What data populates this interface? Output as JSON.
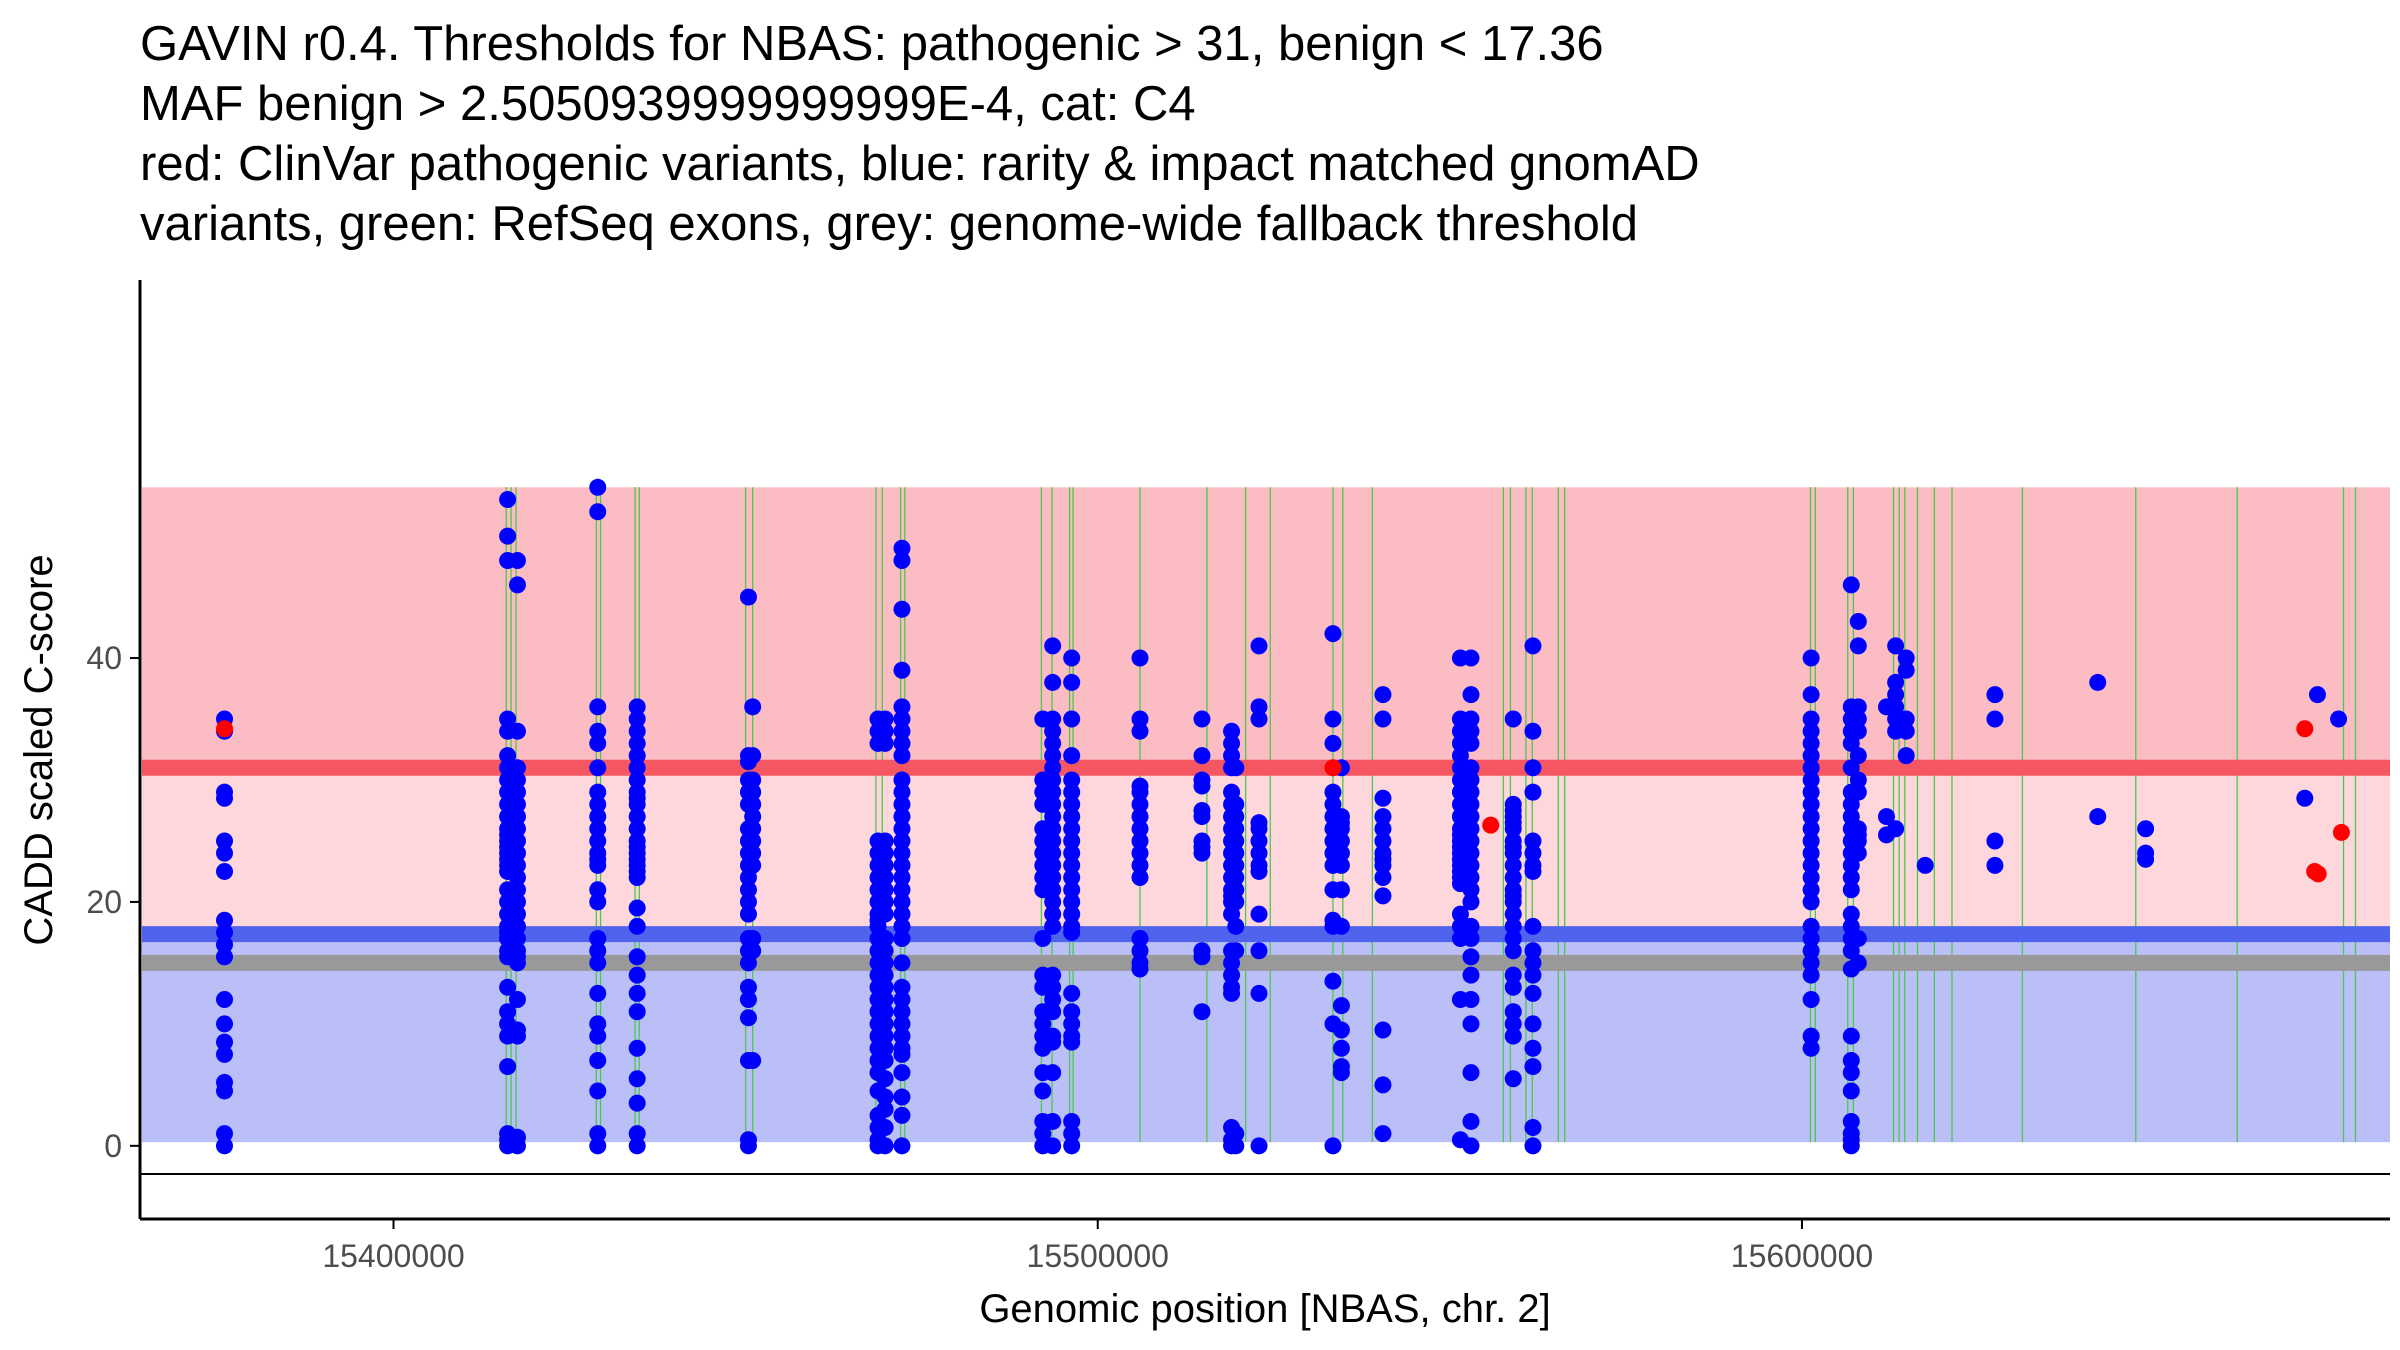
{
  "chart_data": {
    "type": "scatter",
    "title_lines": [
      "GAVIN r0.4. Thresholds for NBAS: pathogenic > 31, benign < 17.36",
      "MAF benign > 2.5050939999999999E-4, cat: C4",
      "red: ClinVar pathogenic variants, blue: rarity & impact matched gnomAD",
      "variants, green: RefSeq exons, grey: genome-wide fallback threshold"
    ],
    "xlabel": "Genomic position [NBAS, chr. 2]",
    "ylabel": "CADD scaled C-score",
    "xlim": [
      15364000,
      15683500
    ],
    "ylim": [
      -6,
      71
    ],
    "x_ticks": [
      15400000,
      15500000,
      15600000
    ],
    "x_tick_labels": [
      "15400000",
      "15500000",
      "15600000"
    ],
    "y_ticks": [
      0,
      20,
      40
    ],
    "y_tick_labels": [
      "0",
      "20",
      "40"
    ],
    "thresholds": {
      "pathogenic": 31,
      "benign": 17.36,
      "fallback": 15,
      "region_top": 54,
      "region_bottom": 0.3
    },
    "colors": {
      "pathogenic_region": "#fcbcc3",
      "middle_region": "#fdd7dc",
      "benign_region": "#bbbff8",
      "pathogenic_line": "#f45762",
      "benign_line": "#4f63ec",
      "fallback_line": "#999999",
      "exon_line": "#4cc84c",
      "gnomad_point": "#0000ff",
      "clinvar_point": "#ff0000"
    },
    "exons": [
      15416000,
      15416700,
      15417400,
      15428800,
      15429400,
      15434300,
      15434900,
      15450000,
      15451000,
      15468500,
      15469400,
      15472000,
      15472600,
      15492000,
      15493500,
      15496000,
      15496500,
      15506000,
      15515500,
      15521000,
      15524500,
      15533400,
      15534800,
      15539000,
      15557600,
      15558600,
      15560800,
      15561700,
      15565400,
      15566300,
      15601200,
      15601900,
      15606500,
      15607300,
      15613000,
      15613800,
      15614600,
      15616400,
      15618800,
      15621300,
      15631300,
      15647400,
      15661800,
      15676900,
      15678600
    ],
    "gnomad_columns": [
      {
        "x": 15376000,
        "y": [
          35,
          34,
          29,
          28.5,
          25,
          24,
          22.5,
          18.5,
          17.5,
          16.5,
          15.5,
          12,
          10,
          8.5,
          7.5,
          5.2,
          4.5,
          1,
          0
        ]
      },
      {
        "x": 15416200,
        "y": [
          53,
          50,
          48,
          35,
          34,
          32,
          31,
          30,
          29,
          28,
          27,
          26,
          25.5,
          25,
          24.5,
          24,
          23.5,
          23,
          22.5,
          21,
          20,
          19,
          18,
          17.5,
          17,
          16,
          15.5,
          13,
          11,
          10,
          9,
          6.5,
          1,
          0.5,
          0
        ]
      },
      {
        "x": 15417600,
        "y": [
          48,
          46,
          34,
          31,
          30,
          29,
          28,
          27,
          26,
          25,
          24,
          23,
          22,
          21,
          20,
          19,
          18,
          17,
          16,
          15.5,
          15,
          12,
          9.5,
          9,
          0.7,
          0
        ]
      },
      {
        "x": 15429000,
        "y": [
          54,
          52,
          36,
          34,
          33,
          31,
          29,
          28,
          27,
          26,
          25,
          24,
          23.5,
          23,
          21,
          20,
          17,
          16,
          15,
          12.5,
          10,
          9,
          7,
          4.5,
          1,
          0
        ]
      },
      {
        "x": 15434600,
        "y": [
          36,
          35,
          34,
          33,
          32,
          31,
          30,
          29,
          28.5,
          28,
          27,
          26,
          25,
          24.5,
          24,
          23.5,
          23,
          22.5,
          22,
          19.5,
          18,
          15.5,
          14,
          12.5,
          11,
          8,
          5.5,
          3.5,
          1,
          0
        ]
      },
      {
        "x": 15450400,
        "y": [
          45,
          32,
          31.5,
          30,
          29,
          28,
          26,
          25,
          24,
          23,
          22,
          21,
          20,
          19,
          17,
          16,
          15,
          13,
          12,
          10.5,
          7,
          0.5,
          0
        ]
      },
      {
        "x": 15451000,
        "y": [
          36,
          32,
          30,
          29,
          28,
          27,
          26,
          25,
          24,
          23,
          17,
          16,
          7
        ]
      },
      {
        "x": 15468800,
        "y": [
          35,
          34,
          33,
          25,
          24,
          23,
          22,
          21,
          20,
          19,
          18.5,
          18,
          17,
          16,
          15,
          14,
          13,
          12,
          11,
          10,
          9,
          8,
          7,
          6,
          4.5,
          2.5,
          1.5,
          0.5,
          0
        ]
      },
      {
        "x": 15469800,
        "y": [
          35,
          34,
          33,
          25,
          24,
          23,
          22,
          21,
          20,
          19,
          17,
          16,
          15,
          14,
          13,
          12,
          11,
          10,
          9,
          8,
          7,
          5.5,
          4,
          3,
          1.5,
          0
        ]
      },
      {
        "x": 15472200,
        "y": [
          49,
          48,
          44,
          39,
          36,
          35,
          34,
          33,
          32,
          30,
          29,
          28,
          27,
          26,
          25,
          24,
          23,
          22,
          21,
          20,
          19,
          18,
          17,
          15,
          13,
          12,
          11,
          10,
          9,
          8,
          7.5,
          6,
          4,
          2.5,
          0
        ]
      },
      {
        "x": 15492200,
        "y": [
          35,
          30,
          29,
          28,
          26,
          25,
          24,
          23,
          22,
          21,
          17,
          14,
          13,
          11,
          10,
          9,
          8,
          6,
          4.5,
          2,
          1,
          0
        ]
      },
      {
        "x": 15493600,
        "y": [
          41,
          38,
          35,
          34,
          33,
          32,
          31,
          30,
          29,
          28,
          27,
          26,
          25,
          24,
          23,
          22,
          21,
          20,
          19,
          18,
          14,
          13,
          12,
          11,
          9,
          8.5,
          6,
          2,
          0
        ]
      },
      {
        "x": 15496300,
        "y": [
          40,
          38,
          35,
          32,
          30,
          29,
          28,
          27,
          26,
          25,
          24,
          23,
          22,
          21,
          20,
          19,
          18,
          17.5,
          12.5,
          11,
          10,
          9,
          8.5,
          2,
          1,
          0
        ]
      },
      {
        "x": 15506000,
        "y": [
          40,
          35,
          34,
          29.5,
          29,
          28,
          27,
          26,
          25,
          24,
          23,
          22,
          17,
          16,
          15,
          14.5
        ]
      },
      {
        "x": 15514800,
        "y": [
          35,
          32,
          30,
          29.5,
          27.5,
          27,
          25,
          24.5,
          24,
          16,
          15.5,
          11
        ]
      },
      {
        "x": 15519000,
        "y": [
          34,
          33,
          32,
          31,
          29,
          28,
          27,
          26,
          25,
          24,
          23,
          22,
          21,
          20.5,
          20,
          19,
          16,
          15,
          14,
          13,
          12.5,
          1.5,
          0.5,
          0
        ]
      },
      {
        "x": 15519600,
        "y": [
          31,
          28,
          27,
          26,
          25,
          24,
          23,
          22,
          21,
          20,
          18,
          16,
          1,
          0
        ]
      },
      {
        "x": 15522900,
        "y": [
          41,
          36,
          35,
          26.5,
          26,
          25,
          24,
          23,
          22.5,
          19,
          16,
          12.5,
          0
        ]
      },
      {
        "x": 15533400,
        "y": [
          42,
          35,
          33,
          29,
          28,
          27,
          26,
          25,
          24,
          23,
          21,
          18.5,
          18,
          13.5,
          10,
          0
        ]
      },
      {
        "x": 15534600,
        "y": [
          31,
          27,
          26.5,
          26,
          25,
          24,
          23,
          21,
          18,
          11.5,
          9.5,
          8,
          6.5,
          6
        ]
      },
      {
        "x": 15540500,
        "y": [
          37,
          35,
          28.5,
          27,
          26,
          25,
          24,
          23.5,
          23,
          22,
          20.5,
          9.5,
          5,
          1
        ]
      },
      {
        "x": 15551500,
        "y": [
          40,
          35,
          34,
          33,
          32,
          31,
          30,
          29,
          28,
          27,
          26,
          25.5,
          25,
          24.5,
          24,
          23.5,
          23,
          22.5,
          22,
          21.5,
          19,
          18,
          17,
          12,
          0.5
        ]
      },
      {
        "x": 15553000,
        "y": [
          40,
          37,
          35,
          34,
          33,
          31,
          30,
          29,
          28,
          27,
          26,
          25,
          24,
          23,
          22,
          21,
          20,
          18,
          17,
          15.5,
          14,
          12,
          10,
          6,
          2,
          0
        ]
      },
      {
        "x": 15559000,
        "y": [
          35,
          28,
          27.5,
          27,
          26.5,
          26,
          25,
          24.5,
          24,
          23,
          22,
          21,
          20.5,
          20,
          19,
          18,
          17,
          16,
          14,
          13,
          11,
          10,
          9,
          5.5
        ]
      },
      {
        "x": 15561800,
        "y": [
          41,
          34,
          31,
          29,
          25,
          24,
          23,
          22.5,
          18,
          16,
          15,
          14,
          12.5,
          10,
          8,
          6.5,
          1.5,
          0
        ]
      },
      {
        "x": 15601300,
        "y": [
          40,
          37,
          35,
          34,
          33,
          32,
          31,
          30,
          29,
          28,
          27,
          26,
          25,
          24,
          23,
          22,
          21,
          20,
          18,
          17,
          16,
          15,
          14,
          12,
          9,
          8
        ]
      },
      {
        "x": 15607000,
        "y": [
          46,
          36,
          35,
          34,
          33,
          31,
          29,
          28,
          27,
          26,
          25,
          24,
          23,
          22,
          21,
          19,
          18,
          17,
          16,
          14.5,
          9,
          7,
          6,
          4.5,
          2,
          1,
          0.5,
          0
        ]
      },
      {
        "x": 15608000,
        "y": [
          43,
          41,
          36,
          35,
          34,
          32,
          30,
          29,
          26,
          25.5,
          25,
          24,
          17,
          15
        ]
      },
      {
        "x": 15612000,
        "y": [
          36,
          27,
          25.5
        ]
      },
      {
        "x": 15613300,
        "y": [
          41,
          38,
          37,
          36,
          35,
          34,
          26
        ]
      },
      {
        "x": 15614800,
        "y": [
          40,
          39,
          35,
          34,
          32
        ]
      },
      {
        "x": 15617500,
        "y": [
          23
        ]
      },
      {
        "x": 15627400,
        "y": [
          37,
          35,
          25,
          23
        ]
      },
      {
        "x": 15642000,
        "y": [
          38,
          27
        ]
      },
      {
        "x": 15648800,
        "y": [
          26,
          24,
          23.5
        ]
      },
      {
        "x": 15671400,
        "y": [
          28.5
        ]
      },
      {
        "x": 15673200,
        "y": [
          37
        ]
      },
      {
        "x": 15676200,
        "y": [
          35
        ]
      }
    ],
    "clinvar_points": [
      {
        "x": 15376000,
        "y": 34.2
      },
      {
        "x": 15533400,
        "y": 31
      },
      {
        "x": 15555800,
        "y": 26.3
      },
      {
        "x": 15671400,
        "y": 34.2
      },
      {
        "x": 15672800,
        "y": 22.5
      },
      {
        "x": 15673300,
        "y": 22.3
      },
      {
        "x": 15676600,
        "y": 25.7
      }
    ]
  }
}
